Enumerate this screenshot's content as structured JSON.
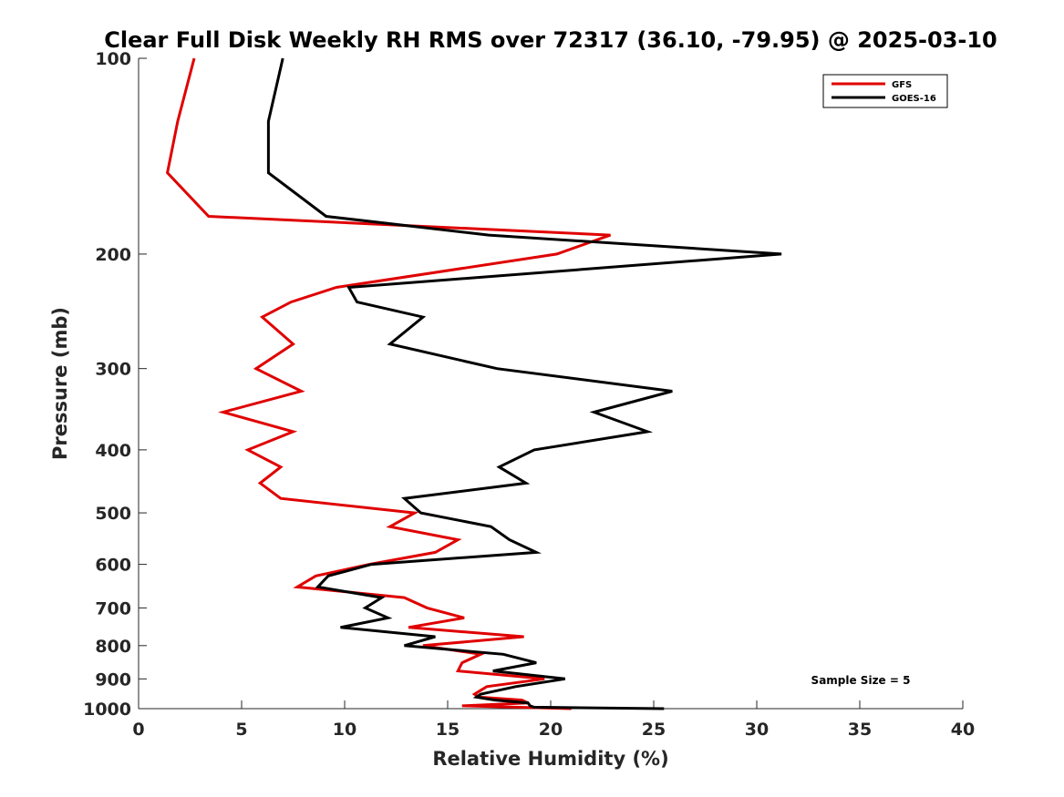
{
  "chart_data": {
    "type": "line",
    "title": "Clear Full Disk Weekly RH RMS over 72317 (36.10, -79.95) @ 2025-03-10",
    "xlabel": "Relative Humidity (%)",
    "ylabel": "Pressure (mb)",
    "xlim": [
      0,
      40
    ],
    "ylim": [
      100,
      1000
    ],
    "y_scale": "log",
    "y_reversed": true,
    "grid": false,
    "legend_position": "top-right",
    "x_ticks": [
      0,
      5,
      10,
      15,
      20,
      25,
      30,
      35,
      40
    ],
    "x_tick_labels": [
      "0",
      "5",
      "10",
      "15",
      "20",
      "25",
      "30",
      "35",
      "40"
    ],
    "y_ticks": [
      100,
      200,
      300,
      400,
      500,
      600,
      700,
      800,
      900,
      1000
    ],
    "y_tick_labels": [
      "100",
      "200",
      "300",
      "400",
      "500",
      "600",
      "700",
      "800",
      "900",
      "1000"
    ],
    "annotation": "Sample Size = 5",
    "series": [
      {
        "name": "GFS",
        "color": "#e00000",
        "points": [
          [
            2.7,
            100
          ],
          [
            1.9,
            125
          ],
          [
            1.4,
            150
          ],
          [
            3.4,
            175
          ],
          [
            22.9,
            187
          ],
          [
            20.3,
            200
          ],
          [
            9.6,
            225
          ],
          [
            7.4,
            237
          ],
          [
            6.0,
            250
          ],
          [
            7.5,
            275
          ],
          [
            5.7,
            300
          ],
          [
            7.9,
            325
          ],
          [
            4.1,
            350
          ],
          [
            7.5,
            375
          ],
          [
            5.3,
            400
          ],
          [
            6.9,
            425
          ],
          [
            5.9,
            450
          ],
          [
            6.9,
            475
          ],
          [
            13.4,
            500
          ],
          [
            12.2,
            525
          ],
          [
            15.5,
            550
          ],
          [
            14.4,
            575
          ],
          [
            11.2,
            600
          ],
          [
            8.6,
            625
          ],
          [
            7.7,
            650
          ],
          [
            12.9,
            675
          ],
          [
            14.0,
            700
          ],
          [
            15.8,
            725
          ],
          [
            13.1,
            750
          ],
          [
            18.7,
            775
          ],
          [
            13.8,
            800
          ],
          [
            16.6,
            825
          ],
          [
            15.7,
            850
          ],
          [
            15.5,
            875
          ],
          [
            19.7,
            900
          ],
          [
            16.9,
            925
          ],
          [
            16.3,
            950
          ],
          [
            16.5,
            960
          ],
          [
            18.6,
            970
          ],
          [
            18.9,
            980
          ],
          [
            15.7,
            990
          ],
          [
            21.0,
            1000
          ]
        ]
      },
      {
        "name": "GOES-16",
        "color": "#000000",
        "points": [
          [
            7.0,
            100
          ],
          [
            6.3,
            125
          ],
          [
            6.3,
            150
          ],
          [
            9.1,
            175
          ],
          [
            17.0,
            187
          ],
          [
            31.2,
            200
          ],
          [
            10.2,
            225
          ],
          [
            10.6,
            237
          ],
          [
            13.8,
            250
          ],
          [
            12.2,
            275
          ],
          [
            17.4,
            300
          ],
          [
            25.9,
            325
          ],
          [
            22.1,
            350
          ],
          [
            24.7,
            375
          ],
          [
            19.2,
            400
          ],
          [
            17.5,
            425
          ],
          [
            18.8,
            450
          ],
          [
            12.9,
            475
          ],
          [
            13.7,
            500
          ],
          [
            17.1,
            525
          ],
          [
            18.0,
            550
          ],
          [
            19.3,
            575
          ],
          [
            11.3,
            600
          ],
          [
            9.2,
            625
          ],
          [
            8.7,
            650
          ],
          [
            11.8,
            675
          ],
          [
            11.0,
            700
          ],
          [
            12.1,
            725
          ],
          [
            9.8,
            750
          ],
          [
            14.4,
            775
          ],
          [
            12.9,
            800
          ],
          [
            17.7,
            825
          ],
          [
            19.3,
            850
          ],
          [
            17.2,
            875
          ],
          [
            20.7,
            900
          ],
          [
            18.3,
            925
          ],
          [
            16.6,
            950
          ],
          [
            16.4,
            960
          ],
          [
            17.3,
            970
          ],
          [
            18.9,
            980
          ],
          [
            19.0,
            990
          ],
          [
            19.2,
            995
          ],
          [
            25.5,
            1000
          ]
        ]
      }
    ]
  }
}
